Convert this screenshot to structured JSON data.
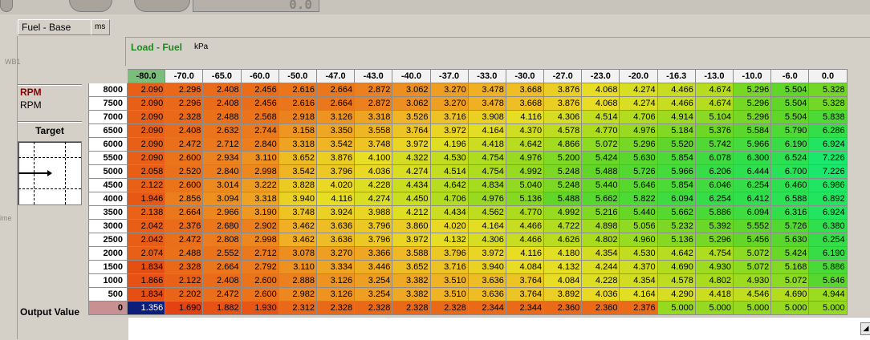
{
  "background_gauges": {
    "digits": "0.0",
    "fragment_texts": [
      "WB1",
      "ime"
    ]
  },
  "tab": {
    "title": "Fuel - Base",
    "unit": "ms"
  },
  "load_axis": {
    "label": "Load - Fuel",
    "unit": "kPa",
    "columns": [
      "-80.0",
      "-70.0",
      "-65.0",
      "-60.0",
      "-50.0",
      "-47.0",
      "-43.0",
      "-40.0",
      "-37.0",
      "-33.0",
      "-30.0",
      "-27.0",
      "-23.0",
      "-20.0",
      "-16.3",
      "-13.0",
      "-10.0",
      "-6.0",
      "0.0"
    ],
    "active_column": "-80.0"
  },
  "rpm_axis": {
    "label_red": "RPM",
    "label_black": "RPM",
    "rows": [
      "8000",
      "7500",
      "7000",
      "6500",
      "6000",
      "5500",
      "5000",
      "4500",
      "4000",
      "3500",
      "3000",
      "2500",
      "2000",
      "1500",
      "1000",
      "500"
    ]
  },
  "target": {
    "label": "Target"
  },
  "output": {
    "label": "Output Value",
    "row_header": "0",
    "values": [
      "1.356",
      "1.690",
      "1.882",
      "1.930",
      "2.312",
      "2.328",
      "2.328",
      "2.328",
      "2.328",
      "2.344",
      "2.344",
      "2.360",
      "2.360",
      "2.376",
      "5.000",
      "5.000",
      "5.000",
      "5.000",
      "5.000"
    ],
    "selected_index": 0
  },
  "table": [
    [
      "2.090",
      "2.296",
      "2.408",
      "2.456",
      "2.616",
      "2.664",
      "2.872",
      "3.062",
      "3.270",
      "3.478",
      "3.668",
      "3.876",
      "4.068",
      "4.274",
      "4.466",
      "4.674",
      "5.296",
      "5.504",
      "5.328"
    ],
    [
      "2.090",
      "2.296",
      "2.408",
      "2.456",
      "2.616",
      "2.664",
      "2.872",
      "3.062",
      "3.270",
      "3.478",
      "3.668",
      "3.876",
      "4.068",
      "4.274",
      "4.466",
      "4.674",
      "5.296",
      "5.504",
      "5.328"
    ],
    [
      "2.090",
      "2.328",
      "2.488",
      "2.568",
      "2.918",
      "3.126",
      "3.318",
      "3.526",
      "3.716",
      "3.908",
      "4.116",
      "4.306",
      "4.514",
      "4.706",
      "4.914",
      "5.104",
      "5.296",
      "5.504",
      "5.838"
    ],
    [
      "2.090",
      "2.408",
      "2.632",
      "2.744",
      "3.158",
      "3.350",
      "3.558",
      "3.764",
      "3.972",
      "4.164",
      "4.370",
      "4.578",
      "4.770",
      "4.976",
      "5.184",
      "5.376",
      "5.584",
      "5.790",
      "6.286"
    ],
    [
      "2.090",
      "2.472",
      "2.712",
      "2.840",
      "3.318",
      "3.542",
      "3.748",
      "3.972",
      "4.196",
      "4.418",
      "4.642",
      "4.866",
      "5.072",
      "5.296",
      "5.520",
      "5.742",
      "5.966",
      "6.190",
      "6.924"
    ],
    [
      "2.090",
      "2.600",
      "2.934",
      "3.110",
      "3.652",
      "3.876",
      "4.100",
      "4.322",
      "4.530",
      "4.754",
      "4.976",
      "5.200",
      "5.424",
      "5.630",
      "5.854",
      "6.078",
      "6.300",
      "6.524",
      "7.226"
    ],
    [
      "2.058",
      "2.520",
      "2.840",
      "2.998",
      "3.542",
      "3.796",
      "4.036",
      "4.274",
      "4.514",
      "4.754",
      "4.992",
      "5.248",
      "5.488",
      "5.726",
      "5.966",
      "6.206",
      "6.444",
      "6.700",
      "7.226"
    ],
    [
      "2.122",
      "2.600",
      "3.014",
      "3.222",
      "3.828",
      "4.020",
      "4.228",
      "4.434",
      "4.642",
      "4.834",
      "5.040",
      "5.248",
      "5.440",
      "5.646",
      "5.854",
      "6.046",
      "6.254",
      "6.460",
      "6.986"
    ],
    [
      "1.946",
      "2.856",
      "3.094",
      "3.318",
      "3.940",
      "4.116",
      "4.274",
      "4.450",
      "4.706",
      "4.976",
      "5.136",
      "5.488",
      "5.662",
      "5.822",
      "6.094",
      "6.254",
      "6.412",
      "6.588",
      "6.892"
    ],
    [
      "2.138",
      "2.664",
      "2.966",
      "3.190",
      "3.748",
      "3.924",
      "3.988",
      "4.212",
      "4.434",
      "4.562",
      "4.770",
      "4.992",
      "5.216",
      "5.440",
      "5.662",
      "5.886",
      "6.094",
      "6.316",
      "6.924"
    ],
    [
      "2.042",
      "2.376",
      "2.680",
      "2.902",
      "3.462",
      "3.636",
      "3.796",
      "3.860",
      "4.020",
      "4.164",
      "4.466",
      "4.722",
      "4.898",
      "5.056",
      "5.232",
      "5.392",
      "5.552",
      "5.726",
      "6.380"
    ],
    [
      "2.042",
      "2.472",
      "2.808",
      "2.998",
      "3.462",
      "3.636",
      "3.796",
      "3.972",
      "4.132",
      "4.306",
      "4.466",
      "4.626",
      "4.802",
      "4.960",
      "5.136",
      "5.296",
      "5.456",
      "5.630",
      "6.254"
    ],
    [
      "2.074",
      "2.488",
      "2.552",
      "2.712",
      "3.078",
      "3.270",
      "3.366",
      "3.588",
      "3.796",
      "3.972",
      "4.116",
      "4.180",
      "4.354",
      "4.530",
      "4.642",
      "4.754",
      "5.072",
      "5.424",
      "6.190"
    ],
    [
      "1.834",
      "2.328",
      "2.664",
      "2.792",
      "3.110",
      "3.334",
      "3.446",
      "3.652",
      "3.716",
      "3.940",
      "4.084",
      "4.132",
      "4.244",
      "4.370",
      "4.690",
      "4.930",
      "5.072",
      "5.168",
      "5.886"
    ],
    [
      "1.866",
      "2.122",
      "2.408",
      "2.600",
      "2.888",
      "3.126",
      "3.254",
      "3.382",
      "3.510",
      "3.636",
      "3.764",
      "4.084",
      "4.228",
      "4.354",
      "4.578",
      "4.802",
      "4.930",
      "5.072",
      "5.646"
    ],
    [
      "1.834",
      "2.202",
      "2.472",
      "2.600",
      "2.982",
      "3.126",
      "3.254",
      "3.382",
      "3.510",
      "3.636",
      "3.764",
      "3.892",
      "4.036",
      "4.164",
      "4.290",
      "4.418",
      "4.546",
      "4.690",
      "4.944"
    ]
  ],
  "colors": {
    "selected_cell": "#0a1e7a",
    "active_axis_column": "#7bbd7b",
    "active_axis_row": "#c89090",
    "low_value": "#e23a0e",
    "high_value": "#1ee86a"
  }
}
